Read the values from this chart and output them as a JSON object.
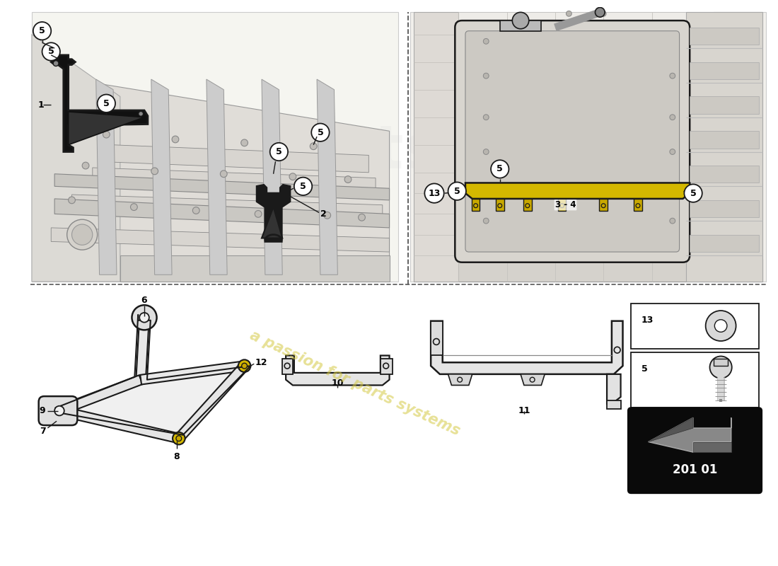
{
  "bg_color": "#ffffff",
  "line_color": "#1a1a1a",
  "highlight_color": "#d4b800",
  "diagram_code": "201 01",
  "watermark_text": "a passion for parts systems",
  "watermark_color": "#d4c840",
  "grey_light": "#e8e8e8",
  "grey_mid": "#cccccc",
  "grey_dark": "#999999",
  "panel_border": "#333333",
  "dashed_color": "#555555"
}
